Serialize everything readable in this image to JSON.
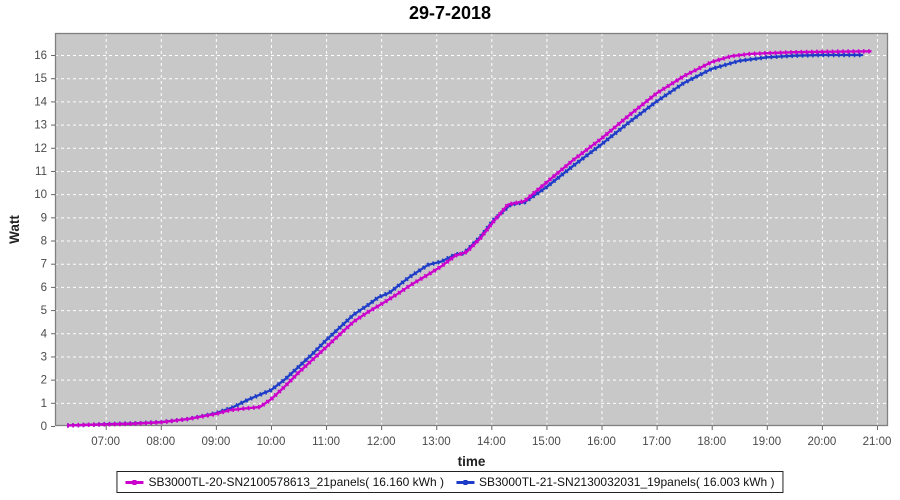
{
  "title": "29-7-2018",
  "chart_data": {
    "type": "line",
    "title": "29-7-2018",
    "xlabel": "time",
    "ylabel": "Watt",
    "x_ticks": [
      {
        "hour": 7,
        "label": "07:00"
      },
      {
        "hour": 8,
        "label": "08:00"
      },
      {
        "hour": 9,
        "label": "09:00"
      },
      {
        "hour": 10,
        "label": "10:00"
      },
      {
        "hour": 11,
        "label": "11:00"
      },
      {
        "hour": 12,
        "label": "12:00"
      },
      {
        "hour": 13,
        "label": "13:00"
      },
      {
        "hour": 14,
        "label": "14:00"
      },
      {
        "hour": 15,
        "label": "15:00"
      },
      {
        "hour": 16,
        "label": "16:00"
      },
      {
        "hour": 17,
        "label": "17:00"
      },
      {
        "hour": 18,
        "label": "18:00"
      },
      {
        "hour": 19,
        "label": "19:00"
      },
      {
        "hour": 20,
        "label": "20:00"
      },
      {
        "hour": 21,
        "label": "21:00"
      }
    ],
    "y_ticks": [
      0,
      1,
      2,
      3,
      4,
      5,
      6,
      7,
      8,
      9,
      10,
      11,
      12,
      13,
      14,
      15,
      16
    ],
    "xlim_hours": [
      6.08,
      21.2
    ],
    "ylim": [
      0,
      16.95
    ],
    "grid": "white dashed lines on gray plot background",
    "legend_position": "bottom",
    "colors": {
      "plot_background": "#c8c8c8",
      "gridline": "#ffffff",
      "plot_border": "#808080",
      "tick_text": "#4a4a4a",
      "axis_label_text": "#222222"
    },
    "series": [
      {
        "name": "SB3000TL-20-SN2100578613_21panels( 16.160 kWh )",
        "color": "#cc00cc",
        "total_kwh": "16.160",
        "points_time_kwh": [
          [
            6.3,
            0.02
          ],
          [
            6.7,
            0.05
          ],
          [
            7.0,
            0.07
          ],
          [
            7.5,
            0.1
          ],
          [
            8.0,
            0.16
          ],
          [
            8.5,
            0.3
          ],
          [
            9.0,
            0.52
          ],
          [
            9.25,
            0.68
          ],
          [
            9.5,
            0.75
          ],
          [
            9.8,
            0.82
          ],
          [
            10.0,
            1.15
          ],
          [
            10.25,
            1.7
          ],
          [
            10.5,
            2.3
          ],
          [
            10.75,
            2.85
          ],
          [
            11.0,
            3.4
          ],
          [
            11.25,
            3.95
          ],
          [
            11.5,
            4.5
          ],
          [
            11.75,
            4.9
          ],
          [
            12.0,
            5.25
          ],
          [
            12.3,
            5.7
          ],
          [
            12.55,
            6.1
          ],
          [
            12.9,
            6.6
          ],
          [
            13.1,
            6.9
          ],
          [
            13.35,
            7.35
          ],
          [
            13.55,
            7.5
          ],
          [
            13.8,
            8.1
          ],
          [
            14.05,
            8.85
          ],
          [
            14.3,
            9.55
          ],
          [
            14.6,
            9.7
          ],
          [
            15.0,
            10.5
          ],
          [
            15.5,
            11.5
          ],
          [
            16.0,
            12.4
          ],
          [
            16.5,
            13.4
          ],
          [
            17.0,
            14.35
          ],
          [
            17.5,
            15.1
          ],
          [
            18.0,
            15.7
          ],
          [
            18.35,
            15.95
          ],
          [
            18.7,
            16.05
          ],
          [
            19.0,
            16.08
          ],
          [
            19.5,
            16.12
          ],
          [
            20.0,
            16.14
          ],
          [
            20.5,
            16.15
          ],
          [
            20.9,
            16.16
          ]
        ]
      },
      {
        "name": "SB3000TL-21-SN2130032031_19panels( 16.003 kWh )",
        "color": "#1e3cc8",
        "total_kwh": "16.003",
        "points_time_kwh": [
          [
            6.3,
            0.02
          ],
          [
            6.7,
            0.05
          ],
          [
            7.0,
            0.08
          ],
          [
            7.5,
            0.11
          ],
          [
            8.0,
            0.17
          ],
          [
            8.5,
            0.3
          ],
          [
            9.0,
            0.55
          ],
          [
            9.3,
            0.8
          ],
          [
            9.6,
            1.15
          ],
          [
            10.0,
            1.55
          ],
          [
            10.25,
            2.0
          ],
          [
            10.5,
            2.55
          ],
          [
            10.75,
            3.1
          ],
          [
            11.0,
            3.7
          ],
          [
            11.25,
            4.25
          ],
          [
            11.5,
            4.8
          ],
          [
            11.75,
            5.2
          ],
          [
            11.95,
            5.55
          ],
          [
            12.15,
            5.75
          ],
          [
            12.5,
            6.4
          ],
          [
            12.85,
            6.95
          ],
          [
            13.1,
            7.1
          ],
          [
            13.35,
            7.4
          ],
          [
            13.5,
            7.45
          ],
          [
            13.8,
            8.15
          ],
          [
            14.05,
            8.9
          ],
          [
            14.35,
            9.55
          ],
          [
            14.6,
            9.65
          ],
          [
            15.0,
            10.3
          ],
          [
            15.5,
            11.25
          ],
          [
            16.0,
            12.15
          ],
          [
            16.5,
            13.1
          ],
          [
            17.0,
            14.0
          ],
          [
            17.5,
            14.8
          ],
          [
            18.0,
            15.4
          ],
          [
            18.5,
            15.75
          ],
          [
            19.0,
            15.9
          ],
          [
            19.5,
            15.97
          ],
          [
            20.0,
            16.0
          ],
          [
            20.4,
            16.0
          ],
          [
            20.75,
            16.0
          ]
        ]
      }
    ]
  }
}
